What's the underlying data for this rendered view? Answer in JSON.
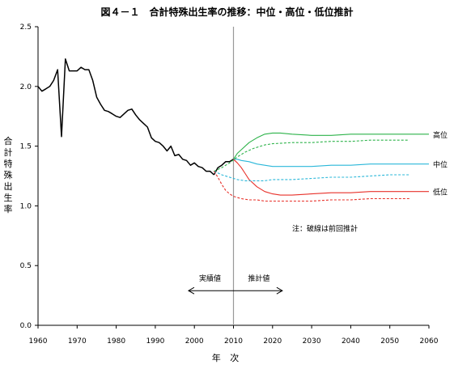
{
  "chart_data": {
    "type": "line",
    "title": "図４－１　合計特殊出生率の推移：中位・高位・低位推計",
    "xlabel": "年 次",
    "ylabel": "合計特殊出生率",
    "xlim": [
      1960,
      2060
    ],
    "ylim": [
      0.0,
      2.5
    ],
    "x_ticks": [
      1960,
      1970,
      1980,
      1990,
      2000,
      2010,
      2020,
      2030,
      2040,
      2050,
      2060
    ],
    "y_ticks": [
      {
        "v": 0.0,
        "label": "0.0"
      },
      {
        "v": 0.5,
        "label": "0.5"
      },
      {
        "v": 1.0,
        "label": "1.0"
      },
      {
        "v": 1.5,
        "label": "1.5"
      },
      {
        "v": 2.0,
        "label": "2.0"
      },
      {
        "v": 2.5,
        "label": "2.5"
      }
    ],
    "divider_year": 2010,
    "annotations": {
      "actual": "実績値",
      "projected": "推計値",
      "dashed_note": "注：破線は前回推計",
      "high": "高位",
      "medium": "中位",
      "low": "低位"
    },
    "series": [
      {
        "key": "actual",
        "color": "#000000",
        "dashed": false,
        "x": [
          1960,
          1961,
          1962,
          1963,
          1964,
          1965,
          1966,
          1967,
          1968,
          1969,
          1970,
          1971,
          1972,
          1973,
          1974,
          1975,
          1976,
          1977,
          1978,
          1979,
          1980,
          1981,
          1982,
          1983,
          1984,
          1985,
          1986,
          1987,
          1988,
          1989,
          1990,
          1991,
          1992,
          1993,
          1994,
          1995,
          1996,
          1997,
          1998,
          1999,
          2000,
          2001,
          2002,
          2003,
          2004,
          2005
        ],
        "y": [
          2.0,
          1.96,
          1.98,
          2.0,
          2.05,
          2.14,
          1.58,
          2.23,
          2.13,
          2.13,
          2.13,
          2.16,
          2.14,
          2.14,
          2.05,
          1.91,
          1.85,
          1.8,
          1.79,
          1.77,
          1.75,
          1.74,
          1.77,
          1.8,
          1.81,
          1.76,
          1.72,
          1.69,
          1.66,
          1.57,
          1.54,
          1.53,
          1.5,
          1.46,
          1.5,
          1.42,
          1.43,
          1.39,
          1.38,
          1.34,
          1.36,
          1.33,
          1.32,
          1.29,
          1.29,
          1.26
        ]
      },
      {
        "key": "actual-recent",
        "color": "#000000",
        "dashed": false,
        "x": [
          2005,
          2006,
          2007,
          2008,
          2009,
          2010
        ],
        "y": [
          1.26,
          1.32,
          1.34,
          1.37,
          1.37,
          1.39
        ]
      },
      {
        "key": "high",
        "color": "#2db34a",
        "dashed": false,
        "x": [
          2010,
          2011,
          2012,
          2014,
          2016,
          2018,
          2020,
          2022,
          2025,
          2030,
          2035,
          2040,
          2045,
          2050,
          2055,
          2060
        ],
        "y": [
          1.39,
          1.44,
          1.47,
          1.53,
          1.57,
          1.6,
          1.61,
          1.61,
          1.6,
          1.59,
          1.59,
          1.6,
          1.6,
          1.6,
          1.6,
          1.6
        ]
      },
      {
        "key": "medium",
        "color": "#2ab7d9",
        "dashed": false,
        "x": [
          2010,
          2011,
          2012,
          2014,
          2016,
          2018,
          2020,
          2022,
          2025,
          2030,
          2035,
          2040,
          2045,
          2050,
          2055,
          2060
        ],
        "y": [
          1.39,
          1.39,
          1.38,
          1.37,
          1.35,
          1.34,
          1.33,
          1.33,
          1.33,
          1.33,
          1.34,
          1.34,
          1.35,
          1.35,
          1.35,
          1.35
        ]
      },
      {
        "key": "low",
        "color": "#e8312a",
        "dashed": false,
        "x": [
          2010,
          2011,
          2012,
          2013,
          2014,
          2016,
          2018,
          2020,
          2022,
          2025,
          2030,
          2035,
          2040,
          2045,
          2050,
          2055,
          2060
        ],
        "y": [
          1.39,
          1.36,
          1.32,
          1.27,
          1.22,
          1.16,
          1.12,
          1.1,
          1.09,
          1.09,
          1.1,
          1.11,
          1.11,
          1.12,
          1.12,
          1.12,
          1.12
        ]
      },
      {
        "key": "high-prev",
        "color": "#2db34a",
        "dashed": true,
        "x": [
          2005,
          2007,
          2009,
          2011,
          2013,
          2015,
          2018,
          2020,
          2025,
          2030,
          2035,
          2040,
          2045,
          2050,
          2055
        ],
        "y": [
          1.29,
          1.32,
          1.36,
          1.41,
          1.45,
          1.48,
          1.51,
          1.52,
          1.53,
          1.53,
          1.54,
          1.54,
          1.55,
          1.55,
          1.55
        ]
      },
      {
        "key": "medium-prev",
        "color": "#2ab7d9",
        "dashed": true,
        "x": [
          2005,
          2007,
          2009,
          2011,
          2013,
          2015,
          2018,
          2020,
          2025,
          2030,
          2035,
          2040,
          2045,
          2050,
          2055
        ],
        "y": [
          1.29,
          1.26,
          1.24,
          1.22,
          1.21,
          1.21,
          1.21,
          1.22,
          1.22,
          1.23,
          1.24,
          1.24,
          1.25,
          1.26,
          1.26
        ]
      },
      {
        "key": "low-prev",
        "color": "#e8312a",
        "dashed": true,
        "x": [
          2005,
          2006,
          2007,
          2008,
          2009,
          2010,
          2012,
          2014,
          2016,
          2018,
          2020,
          2025,
          2030,
          2035,
          2040,
          2045,
          2050,
          2055
        ],
        "y": [
          1.29,
          1.24,
          1.18,
          1.13,
          1.1,
          1.08,
          1.06,
          1.05,
          1.05,
          1.04,
          1.04,
          1.04,
          1.04,
          1.05,
          1.05,
          1.06,
          1.06,
          1.06
        ]
      }
    ]
  }
}
